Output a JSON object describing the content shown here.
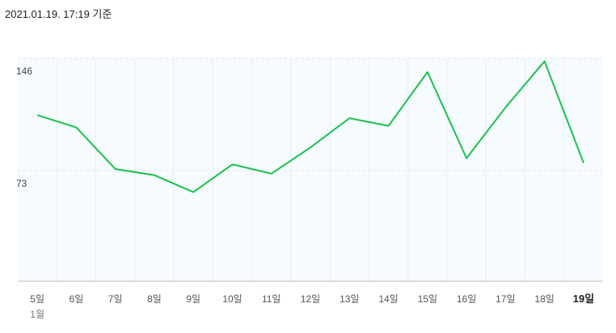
{
  "chart_data": {
    "type": "line",
    "title": "2021.01.19. 17:19 기준",
    "categories": [
      "5일",
      "6일",
      "7일",
      "8일",
      "9일",
      "10일",
      "11일",
      "12일",
      "13일",
      "14일",
      "15일",
      "16일",
      "17일",
      "18일",
      "19일"
    ],
    "month_label": "1월",
    "series": [
      {
        "name": "value",
        "color": "#19c14a",
        "values": [
          109,
          101,
          74,
          70,
          59,
          77,
          71,
          88,
          107,
          102,
          137,
          81,
          114,
          144,
          78
        ]
      }
    ],
    "ylim": [
      0,
      146
    ],
    "yticks": [
      73,
      146
    ],
    "grid": true
  }
}
